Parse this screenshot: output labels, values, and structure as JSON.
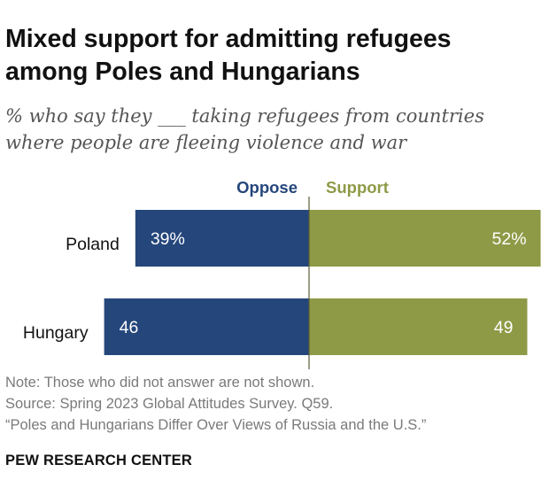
{
  "title_line1": "Mixed support for admitting refugees",
  "title_line2": "among Poles and Hungarians",
  "subtitle_line1": "% who say they ___ taking refugees from countries",
  "subtitle_line2": "where people are fleeing violence and war",
  "chart_data": {
    "type": "bar",
    "orientation": "horizontal-diverging",
    "categories": [
      "Poland",
      "Hungary"
    ],
    "series": [
      {
        "name": "Oppose",
        "color": "#24467b",
        "values": [
          39,
          46
        ],
        "labels": [
          "39%",
          "46"
        ]
      },
      {
        "name": "Support",
        "color": "#8e9a46",
        "values": [
          52,
          49
        ],
        "labels": [
          "52%",
          "49"
        ]
      }
    ],
    "legend_position": "top",
    "title": "Mixed support for admitting refugees among Poles and Hungarians"
  },
  "notes": {
    "note": "Note: Those who did not answer are not shown.",
    "source": "Source: Spring 2023 Global Attitudes Survey. Q59.",
    "report": "“Poles and Hungarians Differ Over Views of Russia and the U.S.”"
  },
  "brand": "PEW RESEARCH CENTER"
}
